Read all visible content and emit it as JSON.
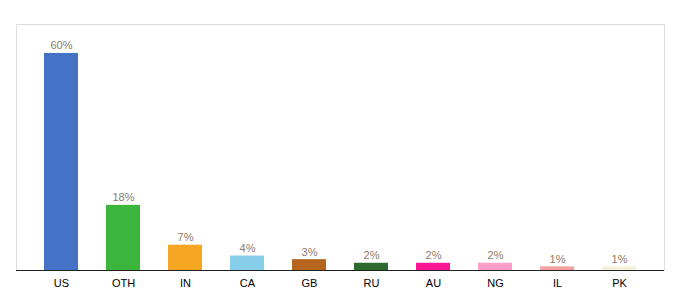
{
  "chart_data": {
    "type": "bar",
    "categories": [
      "US",
      "OTH",
      "IN",
      "CA",
      "GB",
      "RU",
      "AU",
      "NG",
      "IL",
      "PK"
    ],
    "values": [
      60,
      18,
      7,
      4,
      3,
      2,
      2,
      2,
      1,
      1
    ],
    "value_labels": [
      "60%",
      "18%",
      "7%",
      "4%",
      "3%",
      "2%",
      "2%",
      "2%",
      "1%",
      "1%"
    ],
    "colors": [
      "#4472c4",
      "#3cb53c",
      "#f5a623",
      "#87ceeb",
      "#b5651d",
      "#2d6a2d",
      "#ff1493",
      "#ff9ec8",
      "#f4a0a0",
      "#f5f0d8"
    ],
    "ylim": [
      0,
      68
    ],
    "data_labels": true,
    "tick_labels": "x",
    "grid": false
  }
}
